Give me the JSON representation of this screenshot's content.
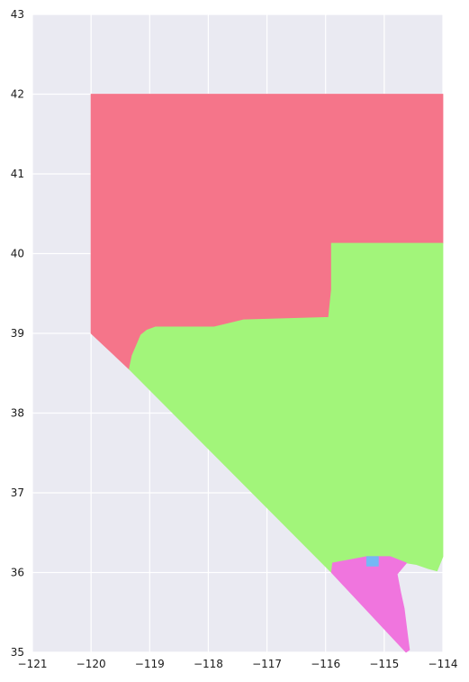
{
  "map": {
    "type": "choropleth",
    "title": "",
    "x_axis": {
      "label": "",
      "range": [
        -121,
        -114
      ],
      "ticks": [
        -121,
        -120,
        -119,
        -118,
        -117,
        -116,
        -115,
        -114
      ]
    },
    "y_axis": {
      "label": "",
      "range": [
        35,
        43
      ],
      "ticks": [
        35,
        36,
        37,
        38,
        39,
        40,
        41,
        42,
        43
      ]
    },
    "grid": true,
    "background_color": "#EAEAF2",
    "grid_color": "#FFFFFF",
    "regions": [
      {
        "id": "region-north",
        "color": "#F5758A",
        "outline": [
          [
            -120.0,
            42.0
          ],
          [
            -114.0,
            42.0
          ],
          [
            -114.0,
            40.13
          ],
          [
            -115.9,
            40.13
          ],
          [
            -115.9,
            39.55
          ],
          [
            -115.95,
            39.2
          ],
          [
            -117.4,
            39.17
          ],
          [
            -117.9,
            39.08
          ],
          [
            -118.9,
            39.08
          ],
          [
            -119.05,
            39.04
          ],
          [
            -119.15,
            38.98
          ],
          [
            -119.3,
            38.72
          ],
          [
            -119.35,
            38.55
          ],
          [
            -120.0,
            39.0
          ]
        ]
      },
      {
        "id": "region-central",
        "color": "#A2F57A",
        "outline": [
          [
            -115.9,
            40.13
          ],
          [
            -114.0,
            40.13
          ],
          [
            -114.0,
            36.2
          ],
          [
            -114.1,
            36.02
          ],
          [
            -114.25,
            36.05
          ],
          [
            -114.45,
            36.1
          ],
          [
            -114.62,
            36.12
          ],
          [
            -114.9,
            36.2
          ],
          [
            -115.1,
            36.2
          ],
          [
            -115.3,
            36.2
          ],
          [
            -115.88,
            36.12
          ],
          [
            -115.9,
            36.0
          ],
          [
            -119.35,
            38.55
          ],
          [
            -119.3,
            38.72
          ],
          [
            -119.15,
            38.98
          ],
          [
            -119.05,
            39.04
          ],
          [
            -118.9,
            39.08
          ],
          [
            -117.9,
            39.08
          ],
          [
            -117.4,
            39.17
          ],
          [
            -115.95,
            39.2
          ],
          [
            -115.9,
            39.55
          ]
        ]
      },
      {
        "id": "region-south",
        "color": "#F075DE",
        "outline": [
          [
            -115.88,
            36.12
          ],
          [
            -115.3,
            36.2
          ],
          [
            -115.1,
            36.2
          ],
          [
            -114.9,
            36.2
          ],
          [
            -114.62,
            36.12
          ],
          [
            -114.78,
            35.98
          ],
          [
            -114.72,
            35.75
          ],
          [
            -114.66,
            35.55
          ],
          [
            -114.6,
            35.2
          ],
          [
            -114.57,
            35.03
          ],
          [
            -114.63,
            35.0
          ],
          [
            -115.9,
            36.0
          ]
        ]
      },
      {
        "id": "region-city",
        "color": "#75B8F5",
        "outline": [
          [
            -115.3,
            36.2
          ],
          [
            -115.1,
            36.2
          ],
          [
            -115.1,
            36.08
          ],
          [
            -115.3,
            36.08
          ]
        ]
      }
    ]
  }
}
